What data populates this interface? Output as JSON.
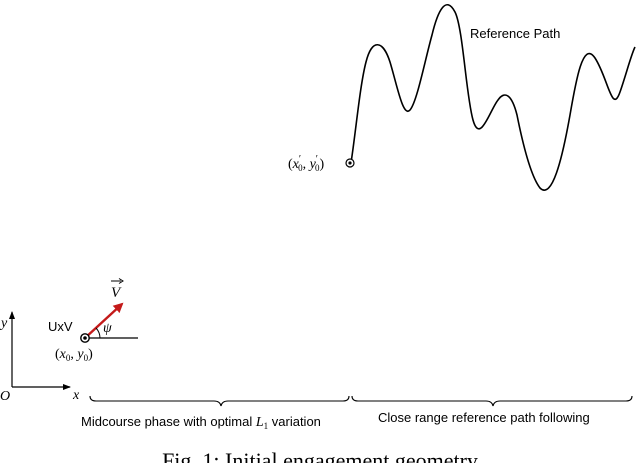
{
  "labels": {
    "reference_path": "Reference Path",
    "start_point_ref_x": "x",
    "start_point_ref_y": "y",
    "start_point_ref_sub": "0",
    "start_point_ref_prime": "′",
    "vehicle": "UxV",
    "velocity": "V",
    "heading_angle": "ψ",
    "vehicle_x": "x",
    "vehicle_y": "y",
    "vehicle_sub": "0",
    "axis_y": "y",
    "axis_x": "x",
    "origin": "O",
    "midcourse_prefix": "Midcourse phase with optimal ",
    "midcourse_symbol": "L",
    "midcourse_sub": "1",
    "midcourse_suffix": " variation",
    "close_range": "Close range reference path following",
    "caption": "Fig. 1: Initial engagement geometry"
  },
  "colors": {
    "line": "#000000",
    "velocity_arrow": "#c41a1a"
  }
}
